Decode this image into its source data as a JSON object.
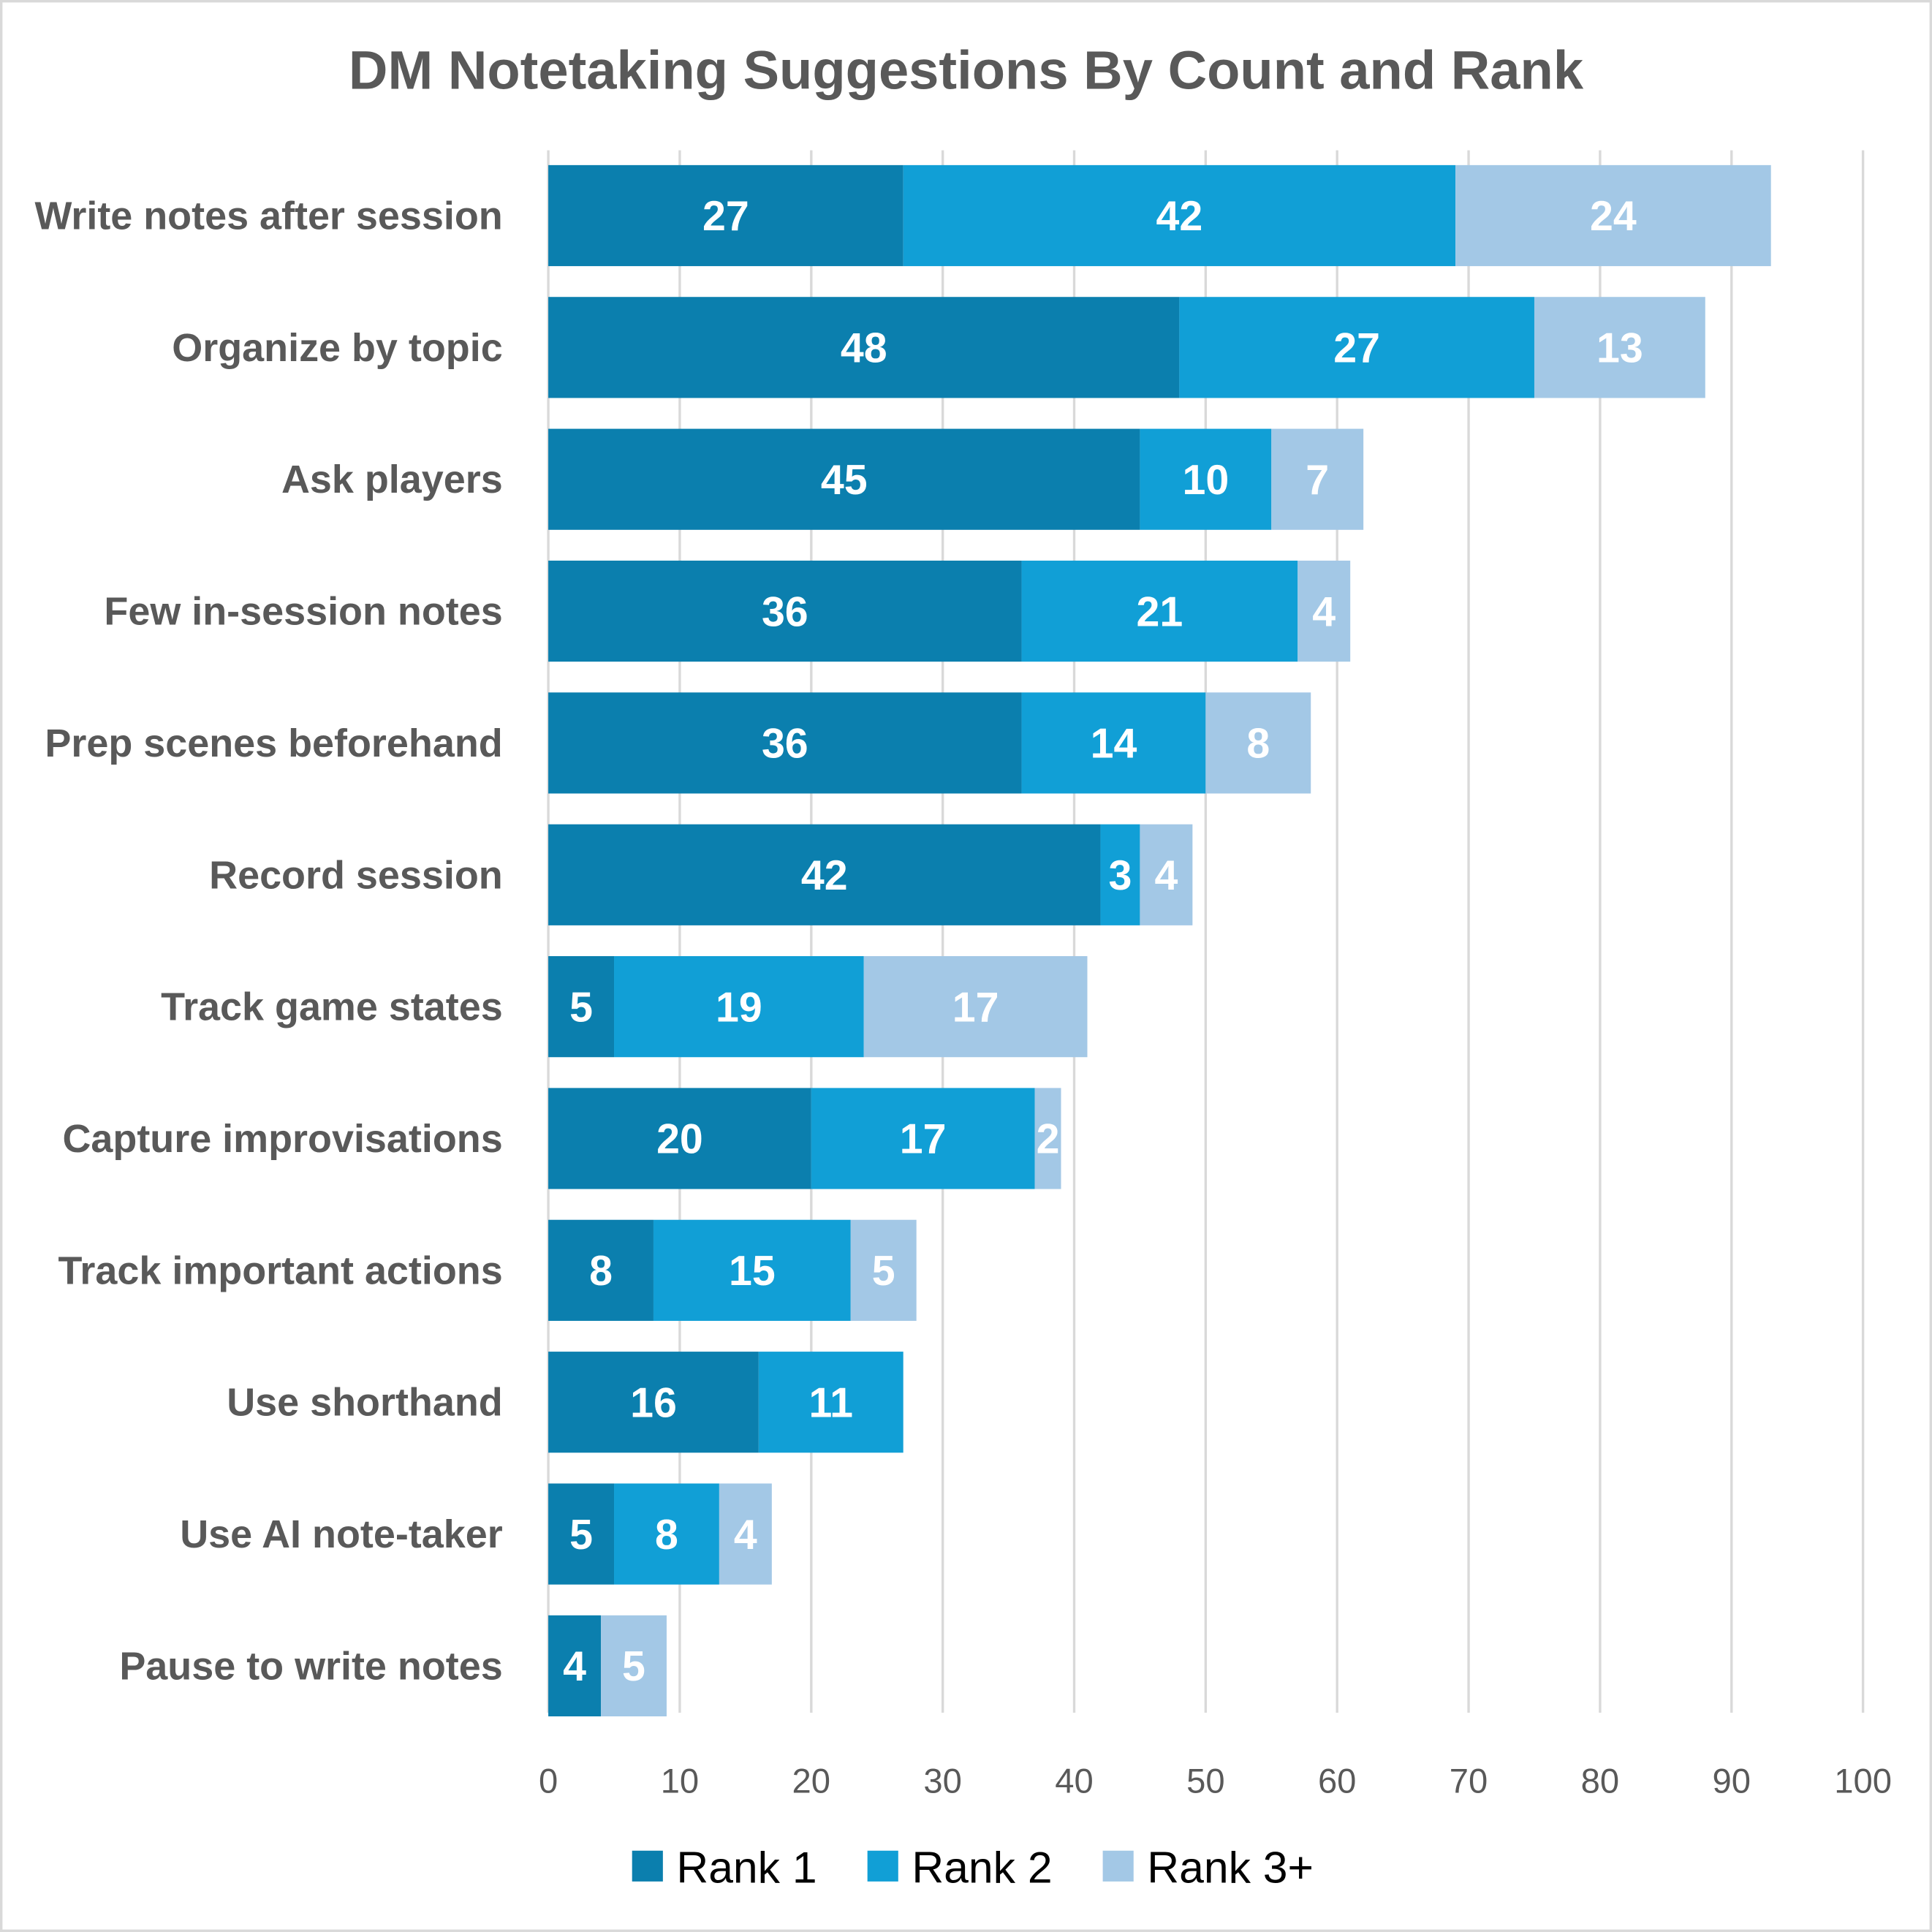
{
  "chart_data": {
    "type": "bar",
    "orientation": "horizontal",
    "stacked": true,
    "title": "DM Notetaking Suggestions By Count and Rank",
    "xlabel": "",
    "ylabel": "",
    "xlim": [
      0,
      100
    ],
    "xticks": [
      "0",
      "10",
      "20",
      "30",
      "40",
      "50",
      "60",
      "70",
      "80",
      "90",
      "100"
    ],
    "grid": "vertical",
    "legend_position": "bottom",
    "categories": [
      "Write notes after session",
      "Organize by topic",
      "Ask players",
      "Few in-session notes",
      "Prep scenes beforehand",
      "Record session",
      "Track game states",
      "Capture improvisations",
      "Track important actions",
      "Use shorthand",
      "Use AI note-taker",
      "Pause to write notes"
    ],
    "series": [
      {
        "name": "Rank 1",
        "color": "#0B7FAE",
        "values": [
          27,
          48,
          45,
          36,
          36,
          42,
          5,
          20,
          8,
          16,
          5,
          4
        ]
      },
      {
        "name": "Rank 2",
        "color": "#119FD6",
        "values": [
          42,
          27,
          10,
          21,
          14,
          3,
          19,
          17,
          15,
          11,
          8,
          0
        ]
      },
      {
        "name": "Rank 3+",
        "color": "#A3C8E6",
        "values": [
          24,
          13,
          7,
          4,
          8,
          4,
          17,
          2,
          5,
          0,
          4,
          5
        ]
      }
    ]
  }
}
